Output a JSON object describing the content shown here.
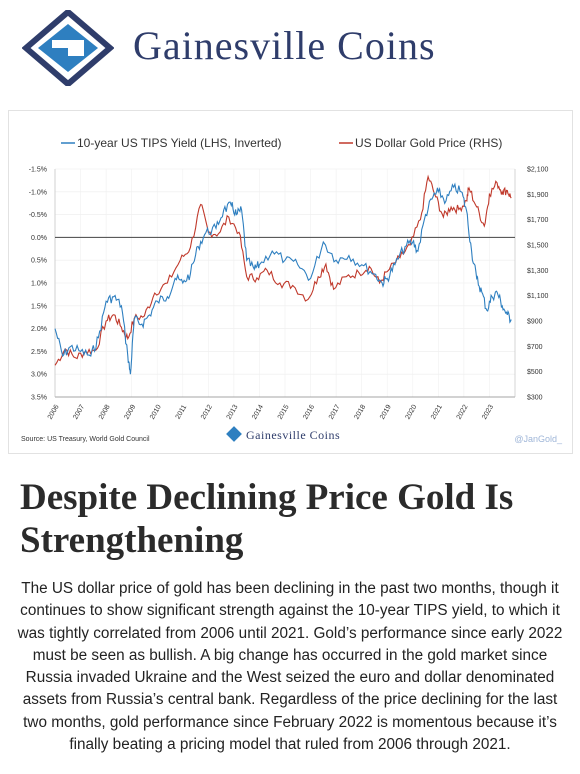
{
  "brand": {
    "name": "Gainesville Coins",
    "colors": {
      "primary": "#2f3d6b",
      "accent": "#2e7fc0"
    }
  },
  "chart_data": {
    "type": "line",
    "legend_position": "top",
    "x": [
      "2006",
      "2007",
      "2008",
      "2009",
      "2010",
      "2011",
      "2012",
      "2013",
      "2014",
      "2015",
      "2016",
      "2017",
      "2018",
      "2019",
      "2020",
      "2021",
      "2022",
      "2023"
    ],
    "left_axis": {
      "label": "10-year US TIPS Yield (LHS, Inverted)",
      "inverted": true,
      "ylim": [
        3.5,
        -1.5
      ],
      "ticks": [
        "-1.5%",
        "-1.0%",
        "-0.5%",
        "0.0%",
        "0.5%",
        "1.0%",
        "1.5%",
        "2.0%",
        "2.5%",
        "3.0%",
        "3.5%"
      ]
    },
    "right_axis": {
      "label": "US Dollar Gold Price (RHS)",
      "ylim": [
        300,
        2100
      ],
      "ticks": [
        "$2,100",
        "$1,900",
        "$1,700",
        "$1,500",
        "$1,300",
        "$1,100",
        "$900",
        "$700",
        "$500",
        "$300"
      ]
    },
    "series": [
      {
        "name": "10-year US TIPS Yield (LHS, Inverted)",
        "axis": "left",
        "color": "#2e7fc0",
        "values": [
          [
            2006.0,
            2.0
          ],
          [
            2006.3,
            2.6
          ],
          [
            2006.6,
            2.4
          ],
          [
            2007.0,
            2.5
          ],
          [
            2007.4,
            2.6
          ],
          [
            2007.7,
            2.2
          ],
          [
            2008.0,
            1.4
          ],
          [
            2008.3,
            1.3
          ],
          [
            2008.6,
            1.5
          ],
          [
            2008.85,
            2.6
          ],
          [
            2008.95,
            3.0
          ],
          [
            2009.1,
            1.8
          ],
          [
            2009.4,
            1.9
          ],
          [
            2009.7,
            1.7
          ],
          [
            2010.0,
            1.4
          ],
          [
            2010.4,
            1.3
          ],
          [
            2010.7,
            0.9
          ],
          [
            2011.0,
            1.0
          ],
          [
            2011.3,
            0.8
          ],
          [
            2011.6,
            0.2
          ],
          [
            2011.9,
            -0.1
          ],
          [
            2012.3,
            -0.2
          ],
          [
            2012.6,
            -0.6
          ],
          [
            2012.9,
            -0.7
          ],
          [
            2013.1,
            -0.5
          ],
          [
            2013.3,
            -0.6
          ],
          [
            2013.5,
            0.5
          ],
          [
            2013.8,
            0.7
          ],
          [
            2014.0,
            0.6
          ],
          [
            2014.5,
            0.3
          ],
          [
            2015.0,
            0.5
          ],
          [
            2015.5,
            0.6
          ],
          [
            2016.0,
            0.9
          ],
          [
            2016.5,
            0.1
          ],
          [
            2017.0,
            0.5
          ],
          [
            2017.5,
            0.4
          ],
          [
            2018.0,
            0.6
          ],
          [
            2018.5,
            0.8
          ],
          [
            2018.8,
            1.0
          ],
          [
            2019.0,
            0.9
          ],
          [
            2019.3,
            0.6
          ],
          [
            2019.7,
            0.2
          ],
          [
            2020.0,
            0.1
          ],
          [
            2020.2,
            0.3
          ],
          [
            2020.5,
            -0.5
          ],
          [
            2020.8,
            -0.9
          ],
          [
            2021.0,
            -1.0
          ],
          [
            2021.3,
            -0.8
          ],
          [
            2021.6,
            -1.1
          ],
          [
            2021.9,
            -1.0
          ],
          [
            2022.1,
            -0.6
          ],
          [
            2022.3,
            0.3
          ],
          [
            2022.5,
            0.9
          ],
          [
            2022.7,
            1.2
          ],
          [
            2022.9,
            1.6
          ],
          [
            2023.1,
            1.3
          ],
          [
            2023.3,
            1.2
          ],
          [
            2023.5,
            1.5
          ],
          [
            2023.7,
            1.7
          ],
          [
            2023.85,
            1.8
          ]
        ]
      },
      {
        "name": "US Dollar Gold Price (RHS)",
        "axis": "right",
        "color": "#c0392b",
        "values": [
          [
            2006.0,
            550
          ],
          [
            2006.4,
            680
          ],
          [
            2006.8,
            610
          ],
          [
            2007.2,
            660
          ],
          [
            2007.6,
            670
          ],
          [
            2008.0,
            900
          ],
          [
            2008.3,
            950
          ],
          [
            2008.6,
            850
          ],
          [
            2008.85,
            760
          ],
          [
            2009.1,
            920
          ],
          [
            2009.5,
            940
          ],
          [
            2009.9,
            1120
          ],
          [
            2010.4,
            1200
          ],
          [
            2010.9,
            1380
          ],
          [
            2011.3,
            1480
          ],
          [
            2011.7,
            1820
          ],
          [
            2012.0,
            1600
          ],
          [
            2012.4,
            1590
          ],
          [
            2012.8,
            1720
          ],
          [
            2013.2,
            1600
          ],
          [
            2013.5,
            1250
          ],
          [
            2013.9,
            1240
          ],
          [
            2014.3,
            1300
          ],
          [
            2014.8,
            1200
          ],
          [
            2015.3,
            1180
          ],
          [
            2015.9,
            1070
          ],
          [
            2016.3,
            1250
          ],
          [
            2016.6,
            1350
          ],
          [
            2016.9,
            1150
          ],
          [
            2017.4,
            1250
          ],
          [
            2017.9,
            1280
          ],
          [
            2018.3,
            1330
          ],
          [
            2018.7,
            1200
          ],
          [
            2019.0,
            1290
          ],
          [
            2019.5,
            1400
          ],
          [
            2019.9,
            1500
          ],
          [
            2020.3,
            1700
          ],
          [
            2020.6,
            2040
          ],
          [
            2020.9,
            1880
          ],
          [
            2021.2,
            1720
          ],
          [
            2021.5,
            1800
          ],
          [
            2021.8,
            1780
          ],
          [
            2022.1,
            1850
          ],
          [
            2022.2,
            1950
          ],
          [
            2022.5,
            1800
          ],
          [
            2022.8,
            1650
          ],
          [
            2023.0,
            1900
          ],
          [
            2023.3,
            1990
          ],
          [
            2023.5,
            1920
          ],
          [
            2023.7,
            1930
          ],
          [
            2023.85,
            1870
          ]
        ]
      }
    ],
    "reference_line": {
      "value": 0.0,
      "axis": "left"
    },
    "source": "Source: US Treasury, World Gold Council",
    "watermark": "@JanGold_"
  },
  "article": {
    "headline": "Despite Declining Price Gold Is Strengthening",
    "body": "The US dollar price of gold has been declining in the past two months, though it continues to show significant strength against the 10-year TIPS yield, to which it was tightly correlated from 2006 until 2021. Gold’s performance since early 2022 must be seen as bullish.  A big change has occurred in the gold market since Russia invaded Ukraine and the West seized the euro and dollar denominated assets from Russia’s central bank. Regardless of the price declining for the last two months, gold performance since February 2022 is momentous because it’s finally beating a pricing model that ruled from 2006 through 2021."
  }
}
